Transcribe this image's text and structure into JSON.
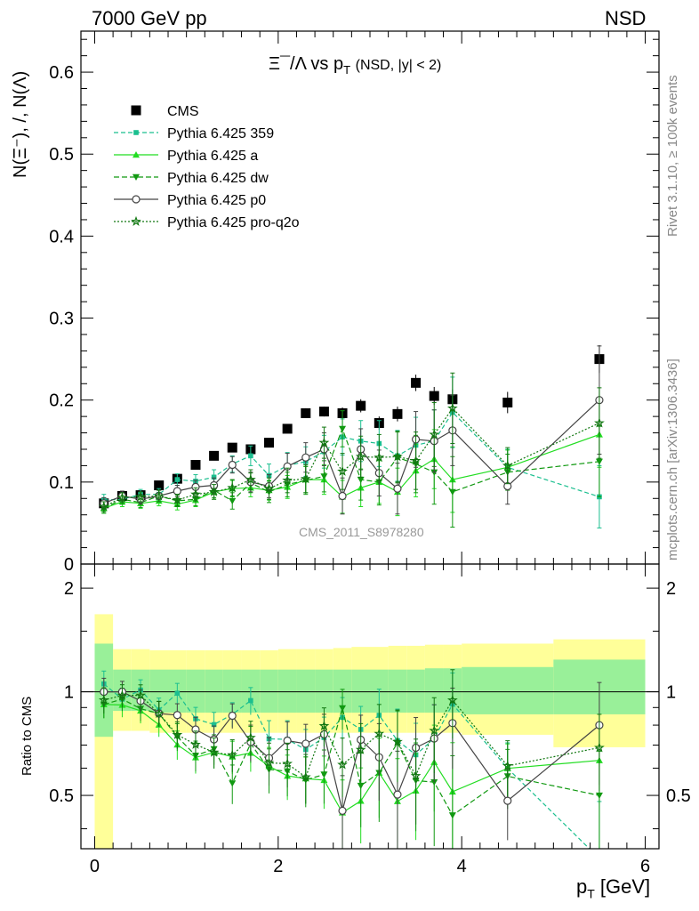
{
  "header": {
    "left": "7000 GeV pp",
    "right": "NSD",
    "side_top": "Rivet 3.1.10, ≥ 100k events",
    "side_bottom": "mcplots.cern.ch [arXiv:1306.3436]",
    "analysis": "CMS_2011_S8978280"
  },
  "chart_data": {
    "type": "scatter",
    "title": "Ξ⁻/Λ  vs p_T (NSD, |y| < 2)",
    "title_parts": {
      "main": "Ξ¯/Λ  vs p",
      "sub": "T",
      "tail": "(NSD, |y| < 2)"
    },
    "ylabel": "N(Ξ⁻), /, N(Λ)",
    "ratio_ylabel": "Ratio to CMS",
    "xlabel": "p_T [GeV]",
    "xlabel_parts": {
      "main": "p",
      "sub": "T",
      "tail": " [GeV]"
    },
    "xlim": [
      -0.15,
      6.15
    ],
    "ylim": [
      0,
      0.65
    ],
    "ratio_ylim": [
      0.35,
      2.35
    ],
    "ratio_log": true,
    "x_ticks": [
      0,
      2,
      4,
      6
    ],
    "y_ticks": [
      0,
      0.1,
      0.2,
      0.3,
      0.4,
      0.5,
      0.6
    ],
    "y_tick_labels": [
      "0",
      "0.1",
      "0.2",
      "0.3",
      "0.4",
      "0.5",
      "0.6"
    ],
    "ratio_ticks": [
      0.5,
      1,
      2
    ],
    "ratio_tick_labels": [
      "0.5",
      "1",
      "2"
    ],
    "legend_position": "top-left",
    "x": [
      0.1,
      0.3,
      0.5,
      0.7,
      0.9,
      1.1,
      1.3,
      1.5,
      1.7,
      1.9,
      2.1,
      2.3,
      2.5,
      2.7,
      2.9,
      3.1,
      3.3,
      3.5,
      3.7,
      3.9,
      4.5,
      5.5
    ],
    "x_bins": [
      [
        0.0,
        0.2
      ],
      [
        0.2,
        0.4
      ],
      [
        0.4,
        0.6
      ],
      [
        0.6,
        0.8
      ],
      [
        0.8,
        1.0
      ],
      [
        1.0,
        1.2
      ],
      [
        1.2,
        1.4
      ],
      [
        1.4,
        1.6
      ],
      [
        1.6,
        1.8
      ],
      [
        1.8,
        2.0
      ],
      [
        2.0,
        2.2
      ],
      [
        2.2,
        2.4
      ],
      [
        2.4,
        2.6
      ],
      [
        2.6,
        2.8
      ],
      [
        2.8,
        3.0
      ],
      [
        3.0,
        3.2
      ],
      [
        3.2,
        3.4
      ],
      [
        3.4,
        3.6
      ],
      [
        3.6,
        3.8
      ],
      [
        3.8,
        4.0
      ],
      [
        4.0,
        5.0
      ],
      [
        5.0,
        6.0
      ]
    ],
    "band_inner": [
      [
        0.74,
        1.38
      ],
      [
        0.88,
        1.16
      ],
      [
        0.88,
        1.16
      ],
      [
        0.87,
        1.16
      ],
      [
        0.87,
        1.16
      ],
      [
        0.87,
        1.16
      ],
      [
        0.87,
        1.16
      ],
      [
        0.87,
        1.16
      ],
      [
        0.87,
        1.16
      ],
      [
        0.87,
        1.16
      ],
      [
        0.87,
        1.16
      ],
      [
        0.87,
        1.16
      ],
      [
        0.87,
        1.16
      ],
      [
        0.87,
        1.16
      ],
      [
        0.87,
        1.16
      ],
      [
        0.87,
        1.16
      ],
      [
        0.87,
        1.16
      ],
      [
        0.87,
        1.16
      ],
      [
        0.87,
        1.17
      ],
      [
        0.87,
        1.17
      ],
      [
        0.86,
        1.18
      ],
      [
        0.86,
        1.24
      ]
    ],
    "band_outer": [
      [
        0.3,
        1.68
      ],
      [
        0.77,
        1.33
      ],
      [
        0.77,
        1.33
      ],
      [
        0.76,
        1.32
      ],
      [
        0.76,
        1.32
      ],
      [
        0.76,
        1.32
      ],
      [
        0.76,
        1.32
      ],
      [
        0.76,
        1.32
      ],
      [
        0.76,
        1.32
      ],
      [
        0.76,
        1.32
      ],
      [
        0.76,
        1.33
      ],
      [
        0.76,
        1.33
      ],
      [
        0.76,
        1.33
      ],
      [
        0.76,
        1.34
      ],
      [
        0.76,
        1.35
      ],
      [
        0.76,
        1.35
      ],
      [
        0.76,
        1.36
      ],
      [
        0.76,
        1.36
      ],
      [
        0.76,
        1.37
      ],
      [
        0.76,
        1.37
      ],
      [
        0.75,
        1.38
      ],
      [
        0.69,
        1.42
      ]
    ],
    "series": [
      {
        "name": "CMS",
        "color": "#000000",
        "marker": "square",
        "dash": "none",
        "reference": true,
        "values": [
          0.074,
          0.083,
          0.084,
          0.096,
          0.104,
          0.121,
          0.132,
          0.142,
          0.14,
          0.148,
          0.165,
          0.184,
          0.186,
          0.184,
          0.193,
          0.172,
          0.183,
          0.221,
          0.205,
          0.201,
          0.197,
          0.25
        ],
        "errors": [
          0.003,
          0.003,
          0.003,
          0.003,
          0.003,
          0.003,
          0.004,
          0.004,
          0.004,
          0.005,
          0.005,
          0.006,
          0.006,
          0.007,
          0.008,
          0.008,
          0.009,
          0.01,
          0.011,
          0.012,
          0.013,
          0.017
        ]
      },
      {
        "name": "Pythia 6.425 359",
        "color": "#1bbf8f",
        "marker": "small-square",
        "dash": "5,3",
        "line_width": 1.2,
        "values": [
          0.078,
          0.079,
          0.085,
          0.085,
          0.103,
          0.101,
          0.106,
          0.122,
          0.132,
          0.108,
          0.12,
          0.125,
          0.137,
          0.155,
          0.15,
          0.147,
          0.132,
          0.145,
          0.15,
          0.185,
          0.118,
          0.082
        ],
        "errors": [
          0.007,
          0.006,
          0.006,
          0.007,
          0.007,
          0.008,
          0.009,
          0.01,
          0.012,
          0.014,
          0.016,
          0.018,
          0.02,
          0.022,
          0.025,
          0.028,
          0.031,
          0.034,
          0.038,
          0.043,
          0.022,
          0.038
        ]
      },
      {
        "name": "Pythia 6.425 a",
        "color": "#22dd22",
        "marker": "triangle-up",
        "dash": "none",
        "line_width": 1.2,
        "values": [
          0.068,
          0.076,
          0.074,
          0.077,
          0.073,
          0.078,
          0.088,
          0.092,
          0.093,
          0.09,
          0.094,
          0.103,
          0.103,
          0.082,
          0.093,
          0.1,
          0.088,
          0.114,
          0.128,
          0.103,
          0.118,
          0.158
        ],
        "errors": [
          0.006,
          0.006,
          0.006,
          0.006,
          0.007,
          0.008,
          0.009,
          0.01,
          0.011,
          0.012,
          0.014,
          0.016,
          0.018,
          0.02,
          0.023,
          0.026,
          0.029,
          0.032,
          0.036,
          0.04,
          0.021,
          0.04
        ]
      },
      {
        "name": "Pythia 6.425 dw",
        "color": "#119911",
        "marker": "triangle-down",
        "dash": "6,3",
        "line_width": 1.2,
        "values": [
          0.068,
          0.079,
          0.075,
          0.083,
          0.077,
          0.079,
          0.09,
          0.077,
          0.099,
          0.088,
          0.097,
          0.102,
          0.107,
          0.165,
          0.103,
          0.1,
          0.13,
          0.122,
          0.112,
          0.088,
          0.112,
          0.125
        ],
        "errors": [
          0.006,
          0.006,
          0.006,
          0.007,
          0.007,
          0.008,
          0.009,
          0.01,
          0.012,
          0.013,
          0.015,
          0.017,
          0.019,
          0.022,
          0.025,
          0.028,
          0.031,
          0.035,
          0.039,
          0.043,
          0.022,
          0.043
        ]
      },
      {
        "name": "Pythia 6.425 p0",
        "color": "#444444",
        "marker": "circle-open",
        "dash": "none",
        "line_width": 1.2,
        "values": [
          0.074,
          0.083,
          0.079,
          0.083,
          0.089,
          0.094,
          0.096,
          0.121,
          0.1,
          0.095,
          0.119,
          0.13,
          0.14,
          0.083,
          0.14,
          0.111,
          0.092,
          0.152,
          0.15,
          0.163,
          0.095,
          0.2
        ],
        "errors": [
          0.007,
          0.006,
          0.006,
          0.007,
          0.007,
          0.008,
          0.009,
          0.01,
          0.012,
          0.014,
          0.016,
          0.018,
          0.02,
          0.022,
          0.025,
          0.028,
          0.031,
          0.034,
          0.038,
          0.043,
          0.022,
          0.066
        ]
      },
      {
        "name": "Pythia 6.425 pro-q2o",
        "color": "#117711",
        "marker": "star",
        "dash": "2,2",
        "line_width": 1.2,
        "values": [
          0.07,
          0.081,
          0.082,
          0.083,
          0.078,
          0.085,
          0.088,
          0.093,
          0.103,
          0.092,
          0.102,
          0.104,
          0.148,
          0.113,
          0.131,
          0.13,
          0.131,
          0.126,
          0.158,
          0.19,
          0.12,
          0.172
        ],
        "errors": [
          0.006,
          0.006,
          0.006,
          0.007,
          0.007,
          0.008,
          0.009,
          0.01,
          0.012,
          0.013,
          0.015,
          0.017,
          0.019,
          0.022,
          0.025,
          0.028,
          0.031,
          0.035,
          0.039,
          0.043,
          0.022,
          0.043
        ]
      }
    ]
  }
}
